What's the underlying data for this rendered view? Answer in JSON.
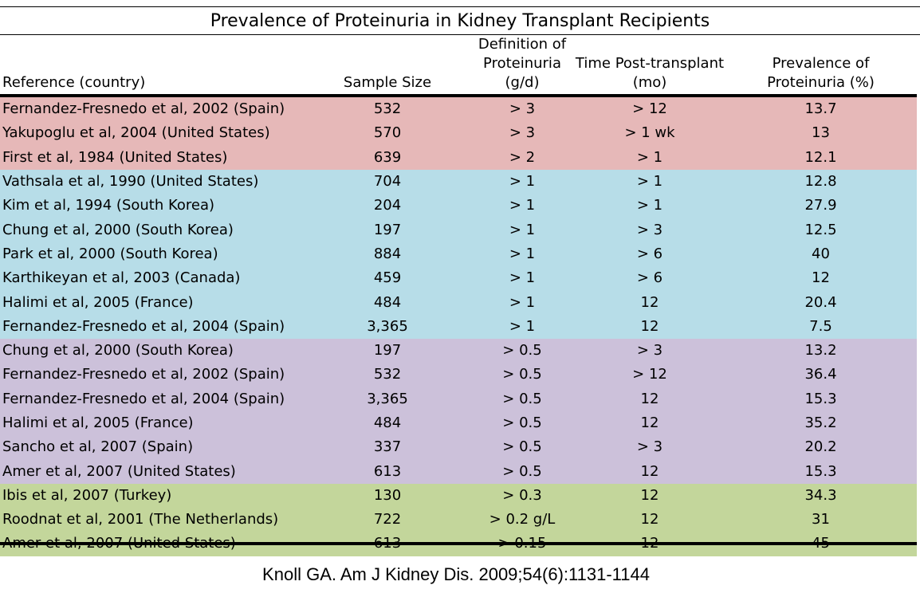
{
  "title": "Prevalence of Proteinuria in Kidney Transplant Recipients",
  "headers": {
    "reference": "Reference (country)",
    "sample_size": "Sample Size",
    "definition_line1": "Definition of",
    "definition_line2": "Proteinuria (g/d)",
    "time_line1": "Time Post-transplant",
    "time_line2": "(mo)",
    "prevalence_line1": "Prevalence of",
    "prevalence_line2": "Proteinuria (%)"
  },
  "group_colors": {
    "g1": "#e6b8b8",
    "g2": "#b7dde8",
    "g3": "#ccc1da",
    "g4": "#c3d69b"
  },
  "rows": [
    {
      "ref": "Fernandez-Fresnedo et al, 2002 (Spain)",
      "n": "532",
      "def": "> 3",
      "time": "> 12",
      "prev": "13.7",
      "group": "g1"
    },
    {
      "ref": "Yakupoglu et al, 2004 (United States)",
      "n": "570",
      "def": "> 3",
      "time": "> 1 wk",
      "prev": "13",
      "group": "g1"
    },
    {
      "ref": "First et al, 1984 (United States)",
      "n": "639",
      "def": "> 2",
      "time": "> 1",
      "prev": "12.1",
      "group": "g1"
    },
    {
      "ref": "Vathsala et al, 1990 (United States)",
      "n": "704",
      "def": "> 1",
      "time": "> 1",
      "prev": "12.8",
      "group": "g2"
    },
    {
      "ref": "Kim et al, 1994 (South Korea)",
      "n": "204",
      "def": "> 1",
      "time": "> 1",
      "prev": "27.9",
      "group": "g2"
    },
    {
      "ref": "Chung et al, 2000 (South Korea)",
      "n": "197",
      "def": "> 1",
      "time": "> 3",
      "prev": "12.5",
      "group": "g2"
    },
    {
      "ref": "Park et al, 2000 (South Korea)",
      "n": "884",
      "def": "> 1",
      "time": "> 6",
      "prev": "40",
      "group": "g2"
    },
    {
      "ref": "Karthikeyan et al, 2003 (Canada)",
      "n": "459",
      "def": "> 1",
      "time": "> 6",
      "prev": "12",
      "group": "g2"
    },
    {
      "ref": "Halimi et al, 2005 (France)",
      "n": "484",
      "def": "> 1",
      "time": "12",
      "prev": "20.4",
      "group": "g2"
    },
    {
      "ref": "Fernandez-Fresnedo et al, 2004 (Spain)",
      "n": "3,365",
      "def": "> 1",
      "time": "12",
      "prev": "7.5",
      "group": "g2"
    },
    {
      "ref": "Chung et al, 2000 (South Korea)",
      "n": "197",
      "def": "> 0.5",
      "time": "> 3",
      "prev": "13.2",
      "group": "g3"
    },
    {
      "ref": "Fernandez-Fresnedo et al, 2002 (Spain)",
      "n": "532",
      "def": "> 0.5",
      "time": "> 12",
      "prev": "36.4",
      "group": "g3"
    },
    {
      "ref": "Fernandez-Fresnedo et al, 2004 (Spain)",
      "n": "3,365",
      "def": "> 0.5",
      "time": "12",
      "prev": "15.3",
      "group": "g3"
    },
    {
      "ref": "Halimi et al, 2005 (France)",
      "n": "484",
      "def": "> 0.5",
      "time": "12",
      "prev": "35.2",
      "group": "g3"
    },
    {
      "ref": "Sancho et al, 2007 (Spain)",
      "n": "337",
      "def": "> 0.5",
      "time": "> 3",
      "prev": "20.2",
      "group": "g3"
    },
    {
      "ref": "Amer et al, 2007 (United States)",
      "n": "613",
      "def": "> 0.5",
      "time": "12",
      "prev": "15.3",
      "group": "g3"
    },
    {
      "ref": "Ibis et al, 2007 (Turkey)",
      "n": "130",
      "def": "> 0.3",
      "time": "12",
      "prev": "34.3",
      "group": "g4"
    },
    {
      "ref": "Roodnat et al, 2001 (The Netherlands)",
      "n": "722",
      "def": "> 0.2 g/L",
      "time": "12",
      "prev": "31",
      "group": "g4"
    },
    {
      "ref": "Amer et al, 2007 (United States)",
      "n": "613",
      "def": "> 0.15",
      "time": "12",
      "prev": "45",
      "group": "g4"
    }
  ],
  "citation": "Knoll GA. Am J Kidney Dis. 2009;54(6):1131-1144"
}
